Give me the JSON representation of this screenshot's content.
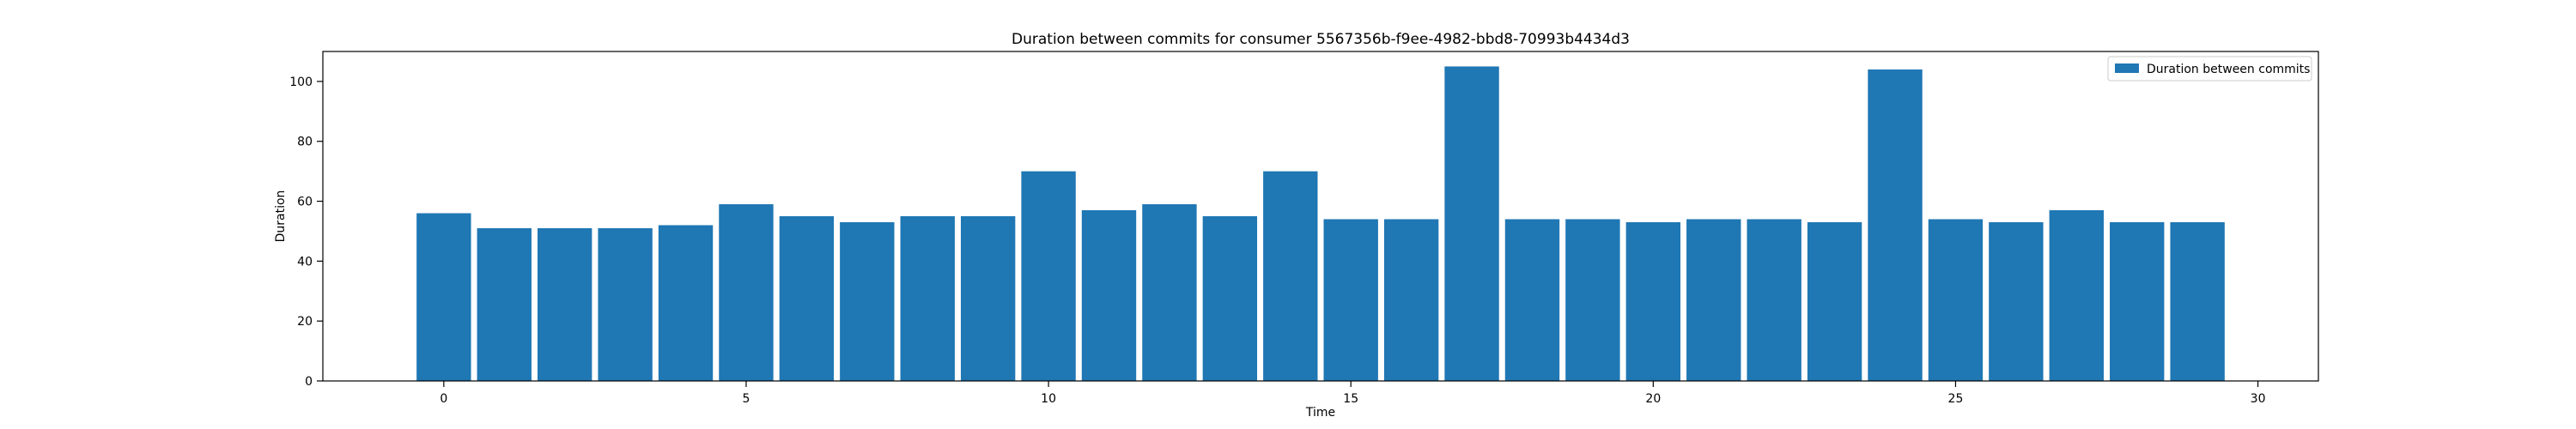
{
  "chart_data": {
    "type": "bar",
    "title": "Duration between commits for consumer 5567356b-f9ee-4982-bbd8-70993b4434d3",
    "xlabel": "Time",
    "ylabel": "Duration",
    "x": [
      0,
      1,
      2,
      3,
      4,
      5,
      6,
      7,
      8,
      9,
      10,
      11,
      12,
      13,
      14,
      15,
      16,
      17,
      18,
      19,
      20,
      21,
      22,
      23,
      24,
      25,
      26,
      27,
      28,
      29
    ],
    "series": [
      {
        "name": "Duration between commits",
        "color": "#1f77b4",
        "values": [
          56,
          51,
          51,
          51,
          52,
          59,
          55,
          53,
          55,
          55,
          70,
          57,
          59,
          55,
          70,
          54,
          54,
          105,
          54,
          54,
          53,
          54,
          54,
          53,
          104,
          54,
          53,
          57,
          53,
          53
        ]
      }
    ],
    "xlim": [
      -2,
      31
    ],
    "ylim": [
      0,
      110
    ],
    "xticks": [
      0,
      5,
      10,
      15,
      20,
      25,
      30
    ],
    "yticks": [
      0,
      20,
      40,
      60,
      80,
      100
    ],
    "grid": false,
    "legend": "top-right"
  }
}
